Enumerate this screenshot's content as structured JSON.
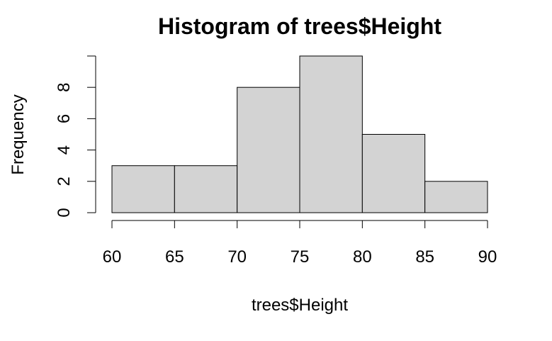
{
  "chart_data": {
    "type": "bar",
    "title": "Histogram of trees$Height",
    "xlabel": "trees$Height",
    "ylabel": "Frequency",
    "bins": [
      [
        60,
        65
      ],
      [
        65,
        70
      ],
      [
        70,
        75
      ],
      [
        75,
        80
      ],
      [
        80,
        85
      ],
      [
        85,
        90
      ]
    ],
    "values": [
      3,
      3,
      8,
      10,
      5,
      2
    ],
    "x_ticks": [
      "60",
      "65",
      "70",
      "75",
      "80",
      "85",
      "90"
    ],
    "y_ticks": [
      "0",
      "2",
      "4",
      "6",
      "8"
    ],
    "xlim": [
      60,
      90
    ],
    "ylim": [
      0,
      10
    ],
    "grid": false,
    "colors": {
      "bar_fill": "#d3d3d3",
      "bar_stroke": "#000000"
    }
  }
}
